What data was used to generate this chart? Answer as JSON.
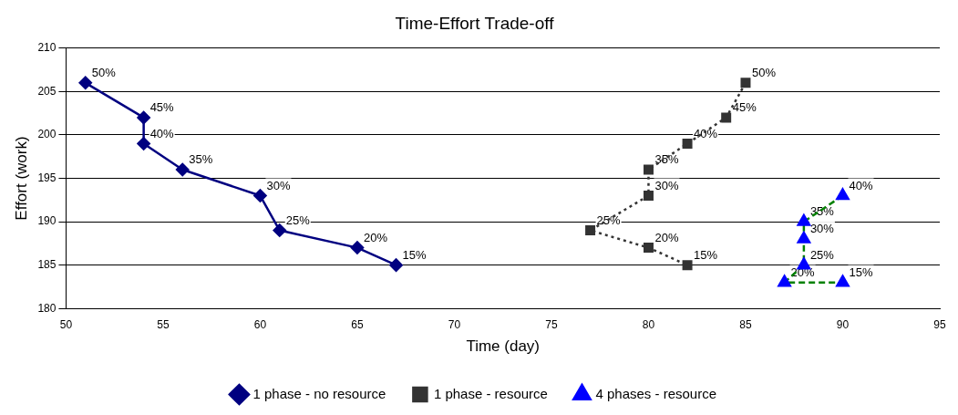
{
  "chart_data": {
    "type": "line",
    "title": "Time-Effort Trade-off",
    "xlabel": "Time (day)",
    "ylabel": "Effort (work)",
    "xlim": [
      50,
      95
    ],
    "xticks": [
      50,
      55,
      60,
      65,
      70,
      75,
      80,
      85,
      90,
      95
    ],
    "ylim": [
      180,
      210
    ],
    "yticks": [
      180,
      185,
      190,
      195,
      200,
      205,
      210
    ],
    "grid": "y",
    "legend": "bottom",
    "series": [
      {
        "name": "1 phase - no resource",
        "color": "#000080",
        "marker": "diamond",
        "line_style": "solid",
        "x": [
          51,
          54,
          54,
          56,
          60,
          61,
          65,
          67
        ],
        "values": [
          206,
          202,
          199,
          196,
          193,
          189,
          187,
          185
        ]
      },
      {
        "name": "1 phase - resource",
        "color": "#333333",
        "marker": "square",
        "line_style": "dotted",
        "x": [
          85,
          84,
          82,
          80,
          80,
          77,
          80,
          82
        ],
        "values": [
          206,
          202,
          199,
          196,
          193,
          189,
          187,
          185
        ]
      },
      {
        "name": "4 phases - resource",
        "color": "#008000",
        "colors": [
          "#0000ff",
          "#0000ff",
          "#0000ff",
          "#0000ff",
          "#0000ff",
          "#0000ff"
        ],
        "marker": "triangle",
        "line_style": "dashed",
        "x": [
          90,
          88,
          88,
          88,
          87,
          90
        ],
        "values": [
          193,
          190,
          188,
          185,
          183,
          183
        ]
      }
    ],
    "annotations": [
      {
        "text": "50%",
        "x": 51,
        "y": 206
      },
      {
        "text": "45%",
        "x": 54,
        "y": 202
      },
      {
        "text": "40%",
        "x": 54,
        "y": 199
      },
      {
        "text": "35%",
        "x": 56,
        "y": 196
      },
      {
        "text": "30%",
        "x": 60,
        "y": 193
      },
      {
        "text": "25%",
        "x": 61,
        "y": 189
      },
      {
        "text": "20%",
        "x": 65,
        "y": 187
      },
      {
        "text": "15%",
        "x": 67,
        "y": 185
      },
      {
        "text": "50%",
        "x": 85,
        "y": 206
      },
      {
        "text": "45%",
        "x": 84,
        "y": 202
      },
      {
        "text": "40%",
        "x": 82,
        "y": 199
      },
      {
        "text": "35%",
        "x": 80,
        "y": 196
      },
      {
        "text": "30%",
        "x": 80,
        "y": 193
      },
      {
        "text": "25%",
        "x": 77,
        "y": 189
      },
      {
        "text": "20%",
        "x": 80,
        "y": 187
      },
      {
        "text": "15%",
        "x": 82,
        "y": 185
      },
      {
        "text": "40%",
        "x": 90,
        "y": 193
      },
      {
        "text": "35%",
        "x": 88,
        "y": 190
      },
      {
        "text": "30%",
        "x": 88,
        "y": 188
      },
      {
        "text": "25%",
        "x": 88,
        "y": 185
      },
      {
        "text": "20%",
        "x": 87,
        "y": 183
      },
      {
        "text": "15%",
        "x": 90,
        "y": 183
      }
    ]
  }
}
